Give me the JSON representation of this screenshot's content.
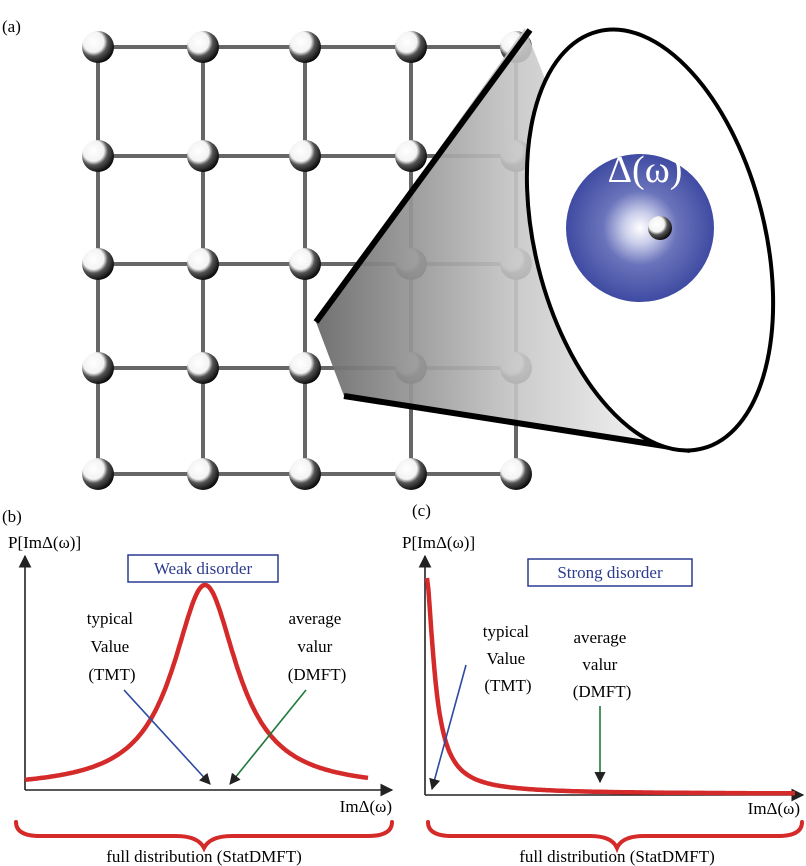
{
  "panel_a": {
    "label": "(a)",
    "bubble_label": "Δ(ω)",
    "lattice": {
      "rows": 5,
      "cols": 5
    }
  },
  "panel_b": {
    "label": "(b)",
    "y_axis_label": "P[ImΔ(ω)]",
    "x_axis_label": "ImΔ(ω)",
    "box_label": "Weak disorder",
    "typical_lines": [
      "typical",
      "Value",
      "(TMT)"
    ],
    "average_lines": [
      "average",
      "valur",
      "(DMFT)"
    ],
    "brace_label": "full distribution (StatDMFT)"
  },
  "panel_c": {
    "label": "(c)",
    "y_axis_label": "P[ImΔ(ω)]",
    "x_axis_label": "ImΔ(ω)",
    "box_label": "Strong disorder",
    "typical_lines": [
      "typical",
      "Value",
      "(TMT)"
    ],
    "average_lines": [
      "average",
      "valur",
      "(DMFT)"
    ],
    "brace_label": "full distribution (StatDMFT)"
  },
  "colors": {
    "curve": "#d42a2a",
    "box_text": "#2b3b8f",
    "typical_arrow": "#2d4aa0",
    "average_arrow": "#1f7a3a",
    "bubble": "#4a56a8"
  }
}
